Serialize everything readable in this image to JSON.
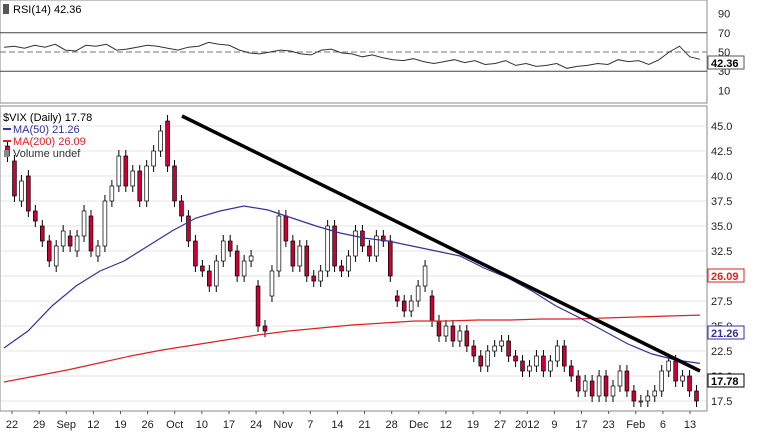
{
  "rsi_panel": {
    "label": "RSI(14) 42.36",
    "value_badge": "42.36",
    "ticks": [
      "90",
      "70",
      "50",
      "30",
      "10"
    ],
    "overbought": 70,
    "oversold": 30
  },
  "legend": {
    "title": "$VIX (Daily) 17.78",
    "ma50": "MA(50) 21.26",
    "ma200": "MA(200) 26.09",
    "volume": "Volume undef"
  },
  "badges": {
    "ma200": "26.09",
    "ma50": "21.26",
    "last": "17.78"
  },
  "colors": {
    "up": "#ffffff",
    "down": "#cc0033",
    "ma50": "#333399",
    "ma200": "#dd2222",
    "trendline": "#000000",
    "grid": "#cccccc"
  },
  "chart_data": {
    "type": "candlestick",
    "title": "$VIX (Daily) 17.78",
    "y_ticks": [
      "45.0",
      "42.5",
      "40.0",
      "37.5",
      "35.0",
      "32.5",
      "30.0",
      "27.5",
      "25.0",
      "22.5",
      "20.0",
      "17.5"
    ],
    "ylim": [
      16.5,
      47
    ],
    "x_ticks": [
      "22",
      "29",
      "Sep",
      "12",
      "19",
      "26",
      "Oct",
      "10",
      "17",
      "24",
      "Nov",
      "7",
      "14",
      "21",
      "28",
      "Dec",
      "12",
      "19",
      "27",
      "2012",
      "9",
      "17",
      "23",
      "Feb",
      "6",
      "13"
    ],
    "candles": [
      [
        43.0,
        42.0
      ],
      [
        41.5,
        38.0
      ],
      [
        37.5,
        39.5
      ],
      [
        40.0,
        36.5
      ],
      [
        36.5,
        35.5
      ],
      [
        35.0,
        33.5
      ],
      [
        33.5,
        31.5
      ],
      [
        31.0,
        33.0
      ],
      [
        33.0,
        34.5
      ],
      [
        34.0,
        33.0
      ],
      [
        32.5,
        34.0
      ],
      [
        34.0,
        36.5
      ],
      [
        36.0,
        32.5
      ],
      [
        32.0,
        33.0
      ],
      [
        33.0,
        37.5
      ],
      [
        37.5,
        39.0
      ],
      [
        39.0,
        42.0
      ],
      [
        42.0,
        39.0
      ],
      [
        39.0,
        40.5
      ],
      [
        40.5,
        37.5
      ],
      [
        37.5,
        41.0
      ],
      [
        41.0,
        42.5
      ],
      [
        42.5,
        44.5
      ],
      [
        45.5,
        41.0
      ],
      [
        41.0,
        37.5
      ],
      [
        37.5,
        36.0
      ],
      [
        36.0,
        33.5
      ],
      [
        33.5,
        31.0
      ],
      [
        31.0,
        30.5
      ],
      [
        30.5,
        29.0
      ],
      [
        29.0,
        31.5
      ],
      [
        31.5,
        33.5
      ],
      [
        33.5,
        32.5
      ],
      [
        32.5,
        30.0
      ],
      [
        30.0,
        31.5
      ],
      [
        31.5,
        32.0
      ],
      [
        29.0,
        25.0
      ],
      [
        25.0,
        24.5
      ],
      [
        28.0,
        30.5
      ],
      [
        30.5,
        36.0
      ],
      [
        36.0,
        33.5
      ],
      [
        33.5,
        31.0
      ],
      [
        31.0,
        33.0
      ],
      [
        33.0,
        30.0
      ],
      [
        30.0,
        29.5
      ],
      [
        29.5,
        30.5
      ],
      [
        30.5,
        35.0
      ],
      [
        35.0,
        31.0
      ],
      [
        31.0,
        30.5
      ],
      [
        30.5,
        32.0
      ],
      [
        32.0,
        34.5
      ],
      [
        34.5,
        33.0
      ],
      [
        33.0,
        32.0
      ],
      [
        32.0,
        34.0
      ],
      [
        34.0,
        33.5
      ],
      [
        33.5,
        30.0
      ],
      [
        28.0,
        27.5
      ],
      [
        27.5,
        26.5
      ],
      [
        26.5,
        27.5
      ],
      [
        27.5,
        29.0
      ],
      [
        29.0,
        31.0
      ],
      [
        28.0,
        25.5
      ],
      [
        25.5,
        24.0
      ],
      [
        24.0,
        25.0
      ],
      [
        25.0,
        23.5
      ],
      [
        23.5,
        24.5
      ],
      [
        24.5,
        23.0
      ],
      [
        23.0,
        22.0
      ],
      [
        22.0,
        21.0
      ],
      [
        21.0,
        22.5
      ],
      [
        22.5,
        23.0
      ],
      [
        23.0,
        23.5
      ],
      [
        23.5,
        22.0
      ],
      [
        22.0,
        21.5
      ],
      [
        21.5,
        20.5
      ],
      [
        20.5,
        21.0
      ],
      [
        21.0,
        22.0
      ],
      [
        22.0,
        20.5
      ],
      [
        20.5,
        21.5
      ],
      [
        21.5,
        23.0
      ],
      [
        23.0,
        21.0
      ],
      [
        21.0,
        20.0
      ],
      [
        20.0,
        18.5
      ],
      [
        18.5,
        19.5
      ],
      [
        19.5,
        18.0
      ],
      [
        18.0,
        20.0
      ],
      [
        20.0,
        18.0
      ],
      [
        18.0,
        19.0
      ],
      [
        19.0,
        20.5
      ],
      [
        20.5,
        18.5
      ],
      [
        18.5,
        17.5
      ],
      [
        17.5,
        17.5
      ],
      [
        17.5,
        18.0
      ],
      [
        18.0,
        18.5
      ],
      [
        18.5,
        20.5
      ],
      [
        20.5,
        21.5
      ],
      [
        21.5,
        19.5
      ],
      [
        19.5,
        20.0
      ],
      [
        20.0,
        18.5
      ],
      [
        18.5,
        17.5
      ]
    ],
    "ma50": [
      22.8,
      24.5,
      27,
      29,
      30.5,
      31.5,
      33,
      34.5,
      35.8,
      36.5,
      37.0,
      36.6,
      35.8,
      35.0,
      34.3,
      33.8,
      33.5,
      33.0,
      32.5,
      32.0,
      30.8,
      29.8,
      28.5,
      27.0,
      25.8,
      24.5,
      23.2,
      22.2,
      21.6,
      21.26
    ],
    "ma200": [
      19.4,
      20.0,
      20.6,
      21.3,
      22.0,
      22.6,
      23.1,
      23.6,
      24.1,
      24.5,
      24.8,
      25.1,
      25.3,
      25.5,
      25.5,
      25.6,
      25.6,
      25.7,
      25.7,
      25.8,
      25.9,
      26.0,
      26.09
    ],
    "trendline": {
      "from": 46.0,
      "to": 20.5
    },
    "rsi": [
      55,
      56,
      54,
      57,
      55,
      58,
      52,
      51,
      57,
      56,
      58,
      52,
      53,
      55,
      57,
      56,
      54,
      52,
      55,
      56,
      60,
      58,
      57,
      52,
      49,
      48,
      50,
      52,
      51,
      48,
      47,
      52,
      53,
      49,
      48,
      45,
      47,
      44,
      42,
      41,
      43,
      40,
      38,
      40,
      42,
      39,
      41,
      37,
      38,
      41,
      36,
      38,
      35,
      36,
      38,
      33,
      35,
      36,
      38,
      37,
      42,
      40,
      41,
      37,
      42,
      50,
      56,
      45,
      42.36
    ]
  }
}
